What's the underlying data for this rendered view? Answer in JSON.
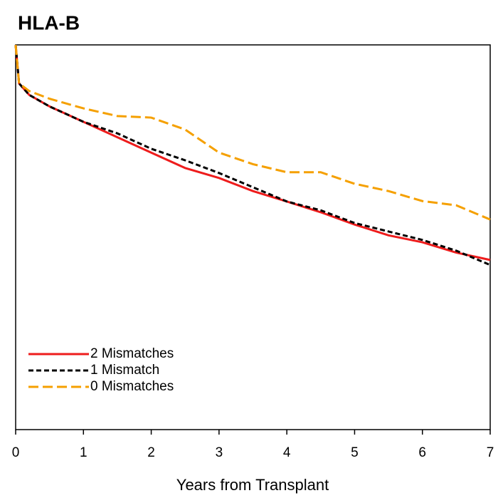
{
  "chart_data": {
    "type": "line",
    "title": "HLA-B",
    "x_label": "Years from Transplant",
    "x": [
      0,
      0.05,
      0.2,
      0.5,
      1,
      1.5,
      2,
      2.5,
      3,
      3.5,
      4,
      4.5,
      5,
      5.5,
      6,
      6.5,
      7
    ],
    "series": [
      {
        "name": "2 Mismatches",
        "color": "#ee1c1c",
        "dash": "none",
        "values": [
          1.0,
          0.9,
          0.87,
          0.84,
          0.8,
          0.76,
          0.72,
          0.68,
          0.654,
          0.62,
          0.593,
          0.565,
          0.533,
          0.505,
          0.487,
          0.46,
          0.441
        ]
      },
      {
        "name": "1 Mismatch",
        "color": "#000000",
        "dash": "7,4",
        "values": [
          1.0,
          0.9,
          0.87,
          0.84,
          0.8,
          0.77,
          0.73,
          0.7,
          0.667,
          0.63,
          0.593,
          0.57,
          0.537,
          0.515,
          0.493,
          0.465,
          0.428
        ]
      },
      {
        "name": "0 Mismatches",
        "color": "#f5a000",
        "dash": "14,6",
        "values": [
          1.0,
          0.9,
          0.88,
          0.86,
          0.835,
          0.815,
          0.811,
          0.78,
          0.72,
          0.69,
          0.669,
          0.669,
          0.639,
          0.62,
          0.594,
          0.583,
          0.546
        ]
      }
    ],
    "xlim": [
      0,
      7
    ],
    "xticks": [
      0,
      1,
      2,
      3,
      4,
      5,
      6,
      7
    ],
    "ylim": [
      0,
      1
    ],
    "legend": "lower left"
  }
}
